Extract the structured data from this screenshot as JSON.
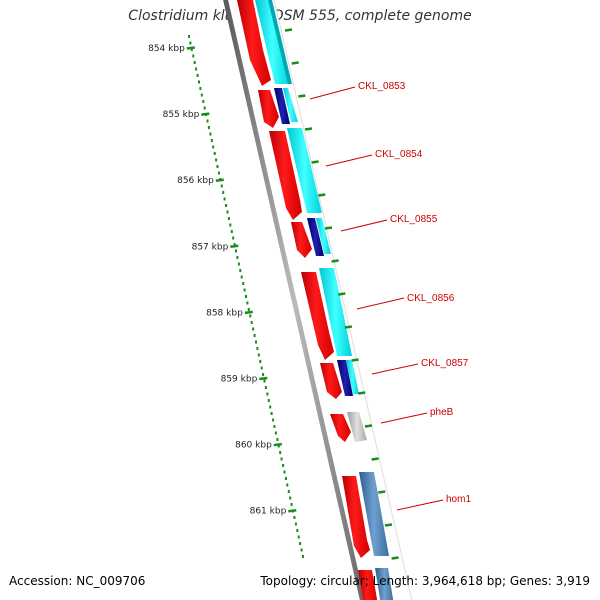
{
  "title": "Clostridium kluyveri DSM 555, complete genome",
  "footer": {
    "accession": "Accession: NC_009706",
    "summary": "Topology: circular; Length: 3,964,618 bp; Genes: 3,919"
  },
  "scale": {
    "unit": "kbp",
    "tick_labels": [
      "854 kbp",
      "855 kbp",
      "856 kbp",
      "857 kbp",
      "858 kbp",
      "859 kbp",
      "860 kbp",
      "861 kbp"
    ]
  },
  "genes": [
    {
      "label": "CKL_0853"
    },
    {
      "label": "CKL_0854"
    },
    {
      "label": "CKL_0855"
    },
    {
      "label": "CKL_0856"
    },
    {
      "label": "CKL_0857"
    },
    {
      "label": "pheB"
    },
    {
      "label": "hom1"
    }
  ],
  "colors": {
    "cds": "#ff0000",
    "cyan_feature": "#00e6f0",
    "navy_feature": "#0a0a8c",
    "grey_feature": "#bdbdbd",
    "steel_feature": "#4f86b8",
    "label": "#cc0000",
    "scale_ticks": "#1a8c1a",
    "backbone": "#888888"
  }
}
